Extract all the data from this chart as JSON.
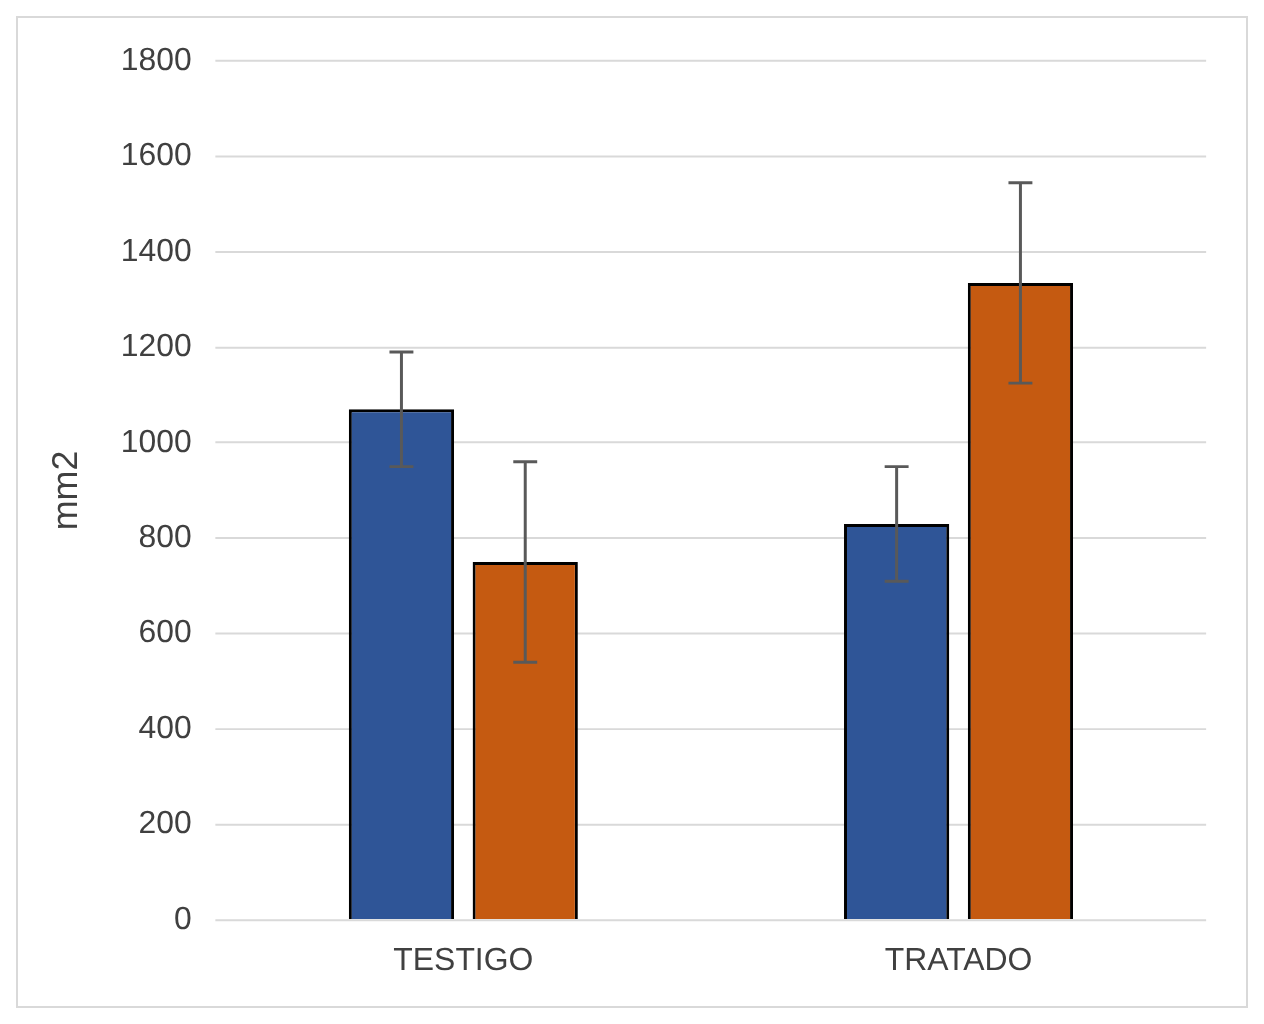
{
  "chart_data": {
    "type": "bar",
    "ylabel": "mm2",
    "categories": [
      "TESTIGO",
      "TRATADO"
    ],
    "series": [
      {
        "color": "#2f5597",
        "values": [
          1070,
          830
        ],
        "errors": [
          120,
          120
        ]
      },
      {
        "color": "#c55a11",
        "values": [
          750,
          1335
        ],
        "errors": [
          210,
          210
        ]
      }
    ],
    "ylim": [
      0,
      1800
    ],
    "yticks": [
      0,
      200,
      400,
      600,
      800,
      1000,
      1200,
      1400,
      1600,
      1800
    ],
    "grid": "y",
    "legend": false
  }
}
